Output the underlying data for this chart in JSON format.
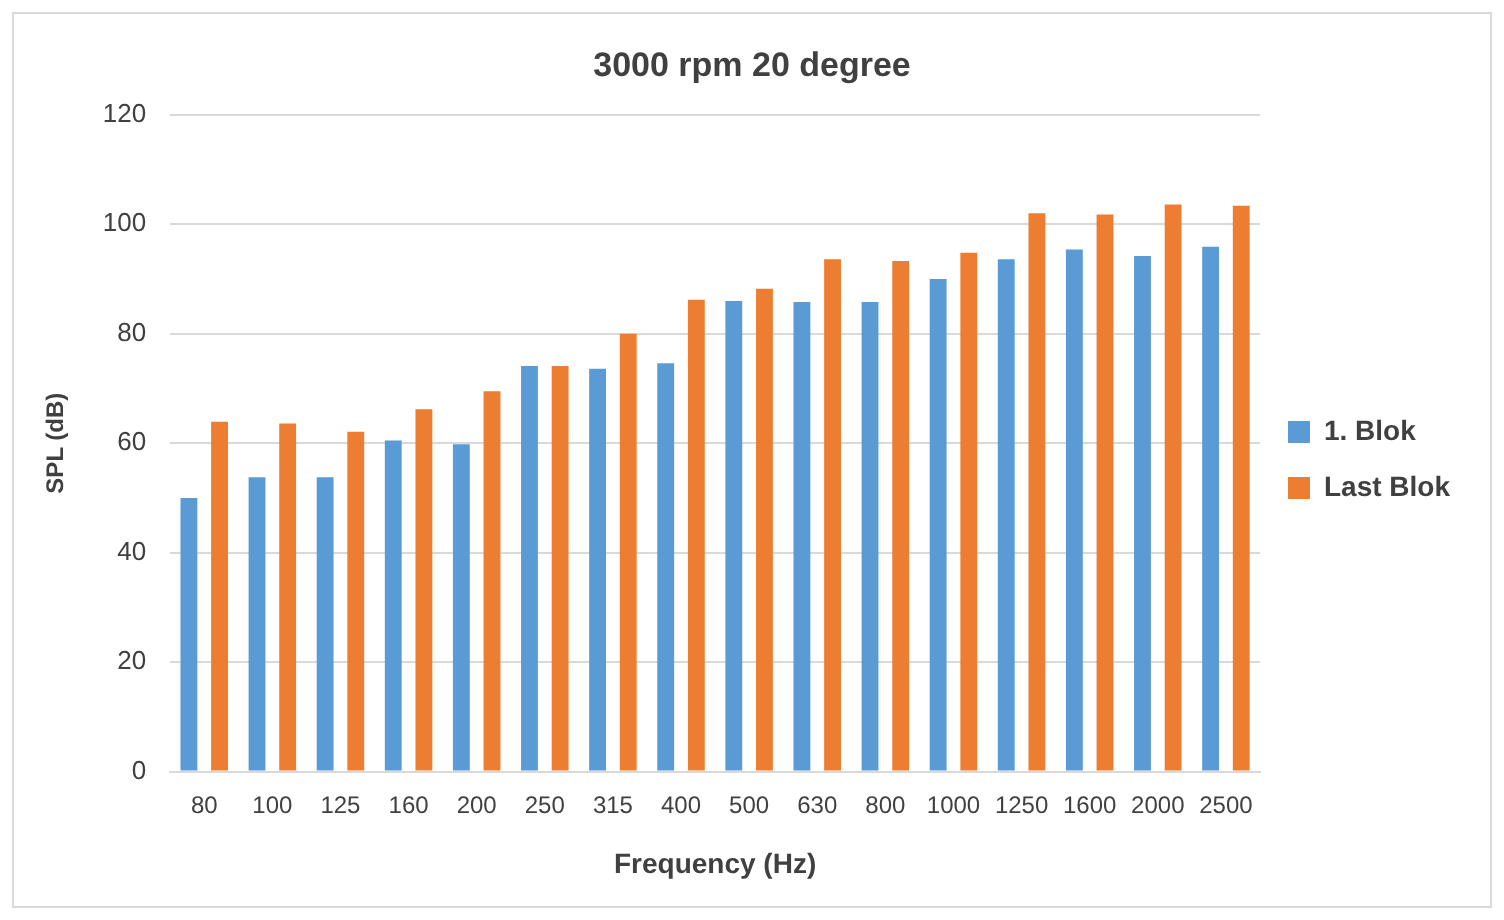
{
  "chart_data": {
    "type": "bar",
    "title": "3000 rpm 20 degree",
    "xlabel": "Frequency (Hz)",
    "ylabel": "SPL (dB)",
    "categories": [
      "80",
      "100",
      "125",
      "160",
      "200",
      "250",
      "315",
      "400",
      "500",
      "630",
      "800",
      "1000",
      "1250",
      "1600",
      "2000",
      "2500"
    ],
    "series": [
      {
        "name": "1. Blok",
        "color": "#5b9bd5",
        "values": [
          50,
          53.8,
          53.8,
          60.5,
          59.8,
          74.1,
          73.6,
          74.6,
          86,
          85.8,
          85.8,
          90,
          93.6,
          95.4,
          94.2,
          95.9
        ]
      },
      {
        "name": "Last Blok",
        "color": "#ed7d31",
        "values": [
          63.9,
          63.6,
          62.1,
          66.2,
          69.5,
          74.1,
          80,
          86.2,
          88.2,
          93.6,
          93.3,
          94.8,
          102,
          101.8,
          103.6,
          103.4
        ]
      }
    ],
    "ylim": [
      0,
      120
    ],
    "yticks": [
      0,
      20,
      40,
      60,
      80,
      100,
      120
    ],
    "grid": "y",
    "legend": "right"
  }
}
